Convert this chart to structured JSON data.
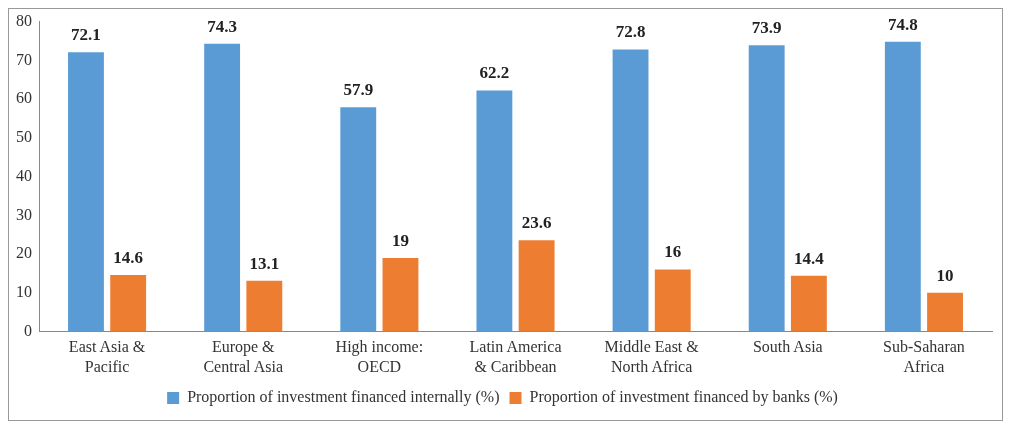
{
  "chart_data": {
    "type": "bar",
    "categories": [
      "East Asia & Pacific",
      "Europe & Central Asia",
      "High income: OECD",
      "Latin America & Caribbean",
      "Middle East & North Africa",
      "South Asia",
      "Sub-Saharan Africa"
    ],
    "series": [
      {
        "name": "Proportion of investment financed internally (%)",
        "color": "#5b9bd5",
        "values": [
          72.1,
          74.3,
          57.9,
          62.2,
          72.8,
          73.9,
          74.8
        ]
      },
      {
        "name": "Proportion of investment financed by banks (%)",
        "color": "#ed7d31",
        "values": [
          14.6,
          13.1,
          19,
          23.6,
          16,
          14.4,
          10
        ]
      }
    ],
    "ylim": [
      0,
      80
    ],
    "yticks": [
      0,
      10,
      20,
      30,
      40,
      50,
      60,
      70,
      80
    ],
    "grid": false,
    "legend": "bottom",
    "data_labels": true
  }
}
